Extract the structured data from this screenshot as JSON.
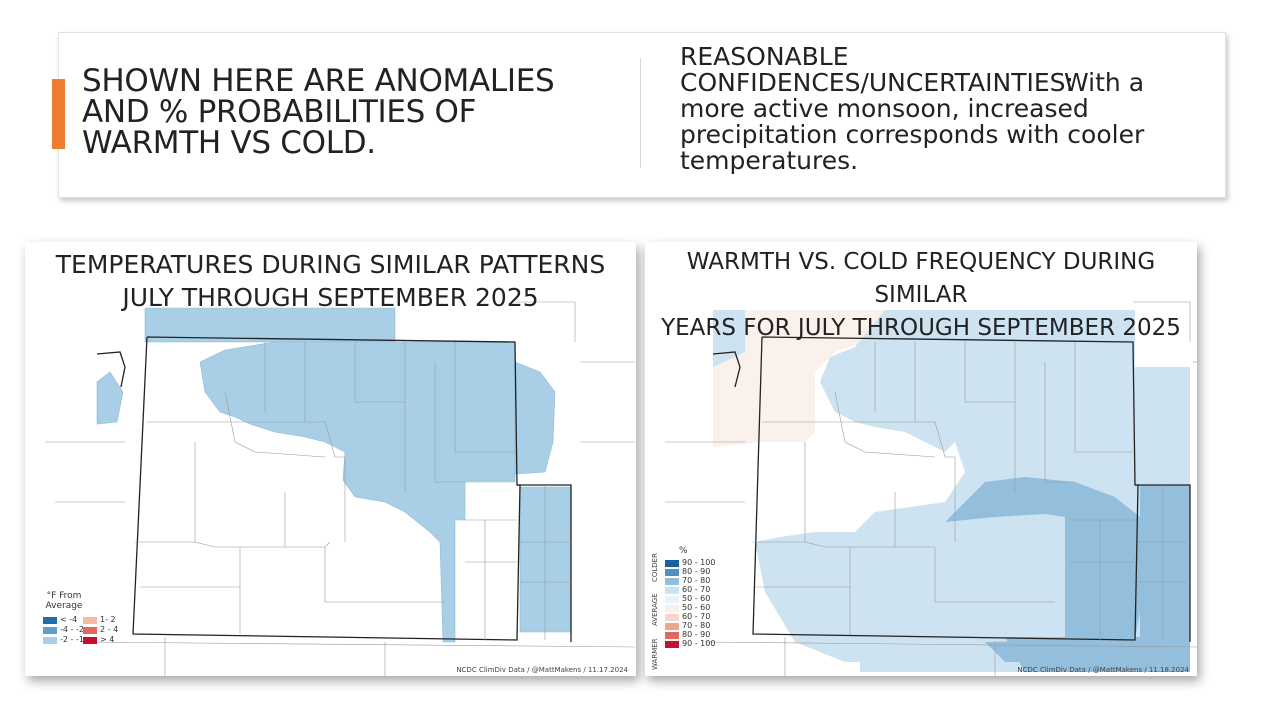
{
  "header": {
    "left_heading": "SHOWN HERE ARE ANOMALIES\nAND % PROBABILITIES OF\nWARMTH VS COLD.",
    "right_title": "REASONABLE\nCONFIDENCES/UNCERTAINTIES:",
    "right_body": "With a more active monsoon, increased precipitation corresponds with cooler temperatures."
  },
  "left_map": {
    "title": "TEMPERATURES DURING SIMILAR PATTERNS\nJULY THROUGH SEPTEMBER 2025",
    "legend_title": "°F From\nAverage",
    "legend_cold": [
      {
        "label": "< -4",
        "color": "#1f6fb0"
      },
      {
        "label": "-4 - -2",
        "color": "#5b9fcf"
      },
      {
        "label": "-2 - -1",
        "color": "#a9cfe6"
      }
    ],
    "legend_warm": [
      {
        "label": "1- 2",
        "color": "#f4bca8"
      },
      {
        "label": "2 - 4",
        "color": "#e4675a"
      },
      {
        "label": "> 4",
        "color": "#c8102e"
      }
    ],
    "credit": "NCDC ClimDiv Data / @MattMakens / 11.17.2024"
  },
  "right_map": {
    "title": "WARMTH VS. COLD FREQUENCY DURING SIMILAR\nYEARS FOR JULY THROUGH SEPTEMBER 2025",
    "legend_title": "%",
    "side_labels": {
      "colder": "COLDER",
      "average": "AVERAGE",
      "warmer": "WARMER"
    },
    "legend": [
      {
        "label": "90 - 100",
        "color": "#1a5f9e"
      },
      {
        "label": "80 - 90",
        "color": "#4f8fc2"
      },
      {
        "label": "70 - 80",
        "color": "#93bfdd"
      },
      {
        "label": "60 - 70",
        "color": "#cde3f1"
      },
      {
        "label": "50 - 60",
        "color": "#eaf3f9"
      },
      {
        "label": "50 - 60",
        "color": "#fbf1ec"
      },
      {
        "label": "60 - 70",
        "color": "#f5d6c8"
      },
      {
        "label": "70 - 80",
        "color": "#eda590"
      },
      {
        "label": "80 - 90",
        "color": "#e06a5c"
      },
      {
        "label": "90 - 100",
        "color": "#c8102e"
      }
    ],
    "credit": "NCDC ClimDiv Data / @MattMakens / 11.18.2024"
  }
}
